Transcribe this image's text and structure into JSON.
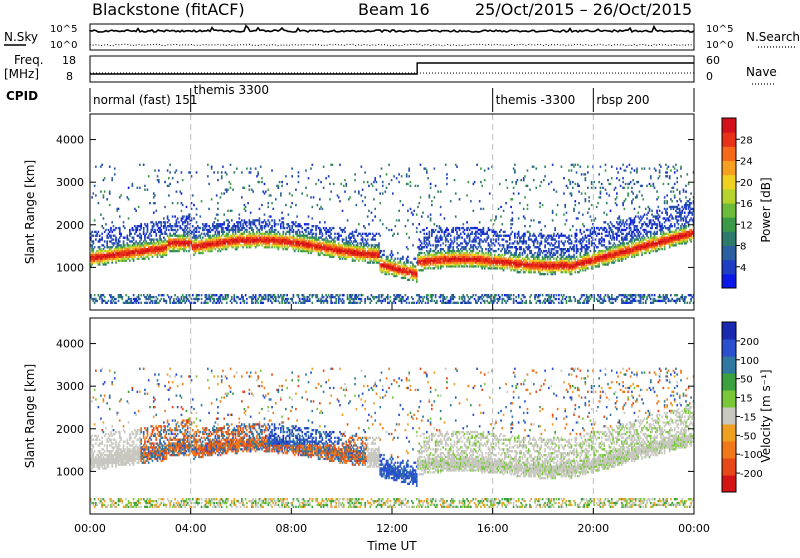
{
  "header": {
    "station": "Blackstone (fitACF)",
    "beam": "Beam 16",
    "date_range": "25/Oct/2015 – 26/Oct/2015"
  },
  "strips": {
    "nsky_label": "N.Sky",
    "nsky_ticks": [
      "10^5",
      "10^0"
    ],
    "nsearch_label": "N.Search",
    "nsearch_ticks": [
      "10^5",
      "10^0"
    ],
    "freq_label": "Freq.",
    "freq_unit": "[MHz]",
    "freq_ticks": [
      "18",
      "8"
    ],
    "nave_label": "Nave",
    "nave_ticks": [
      "60",
      "0"
    ],
    "cpid_label": "CPID",
    "cpid_segments": [
      {
        "label": "normal (fast) 151",
        "start_h": 0
      },
      {
        "label": "themis 3300",
        "start_h": 4
      },
      {
        "label": "themis -3300",
        "start_h": 16
      },
      {
        "label": "rbsp 200",
        "start_h": 20
      }
    ],
    "freq_step_h": 13
  },
  "chart_data": [
    {
      "type": "heatmap",
      "parameter": "Power",
      "xlabel": "",
      "ylabel": "Slant Range [km]",
      "x_range_h": [
        0,
        24
      ],
      "ylim": [
        0,
        4600
      ],
      "yticks": [
        "1000",
        "2000",
        "3000",
        "4000"
      ],
      "colorbar": {
        "label": "Power [dB]",
        "ticks": [
          "4",
          "8",
          "12",
          "16",
          "20",
          "24",
          "28"
        ],
        "range": [
          0,
          32
        ]
      },
      "grid_x_h": [
        4,
        16,
        20
      ]
    },
    {
      "type": "heatmap",
      "parameter": "Velocity",
      "xlabel": "Time UT",
      "ylabel": "Slant Range [km]",
      "x_range_h": [
        0,
        24
      ],
      "xticks": [
        "00:00",
        "04:00",
        "08:00",
        "12:00",
        "16:00",
        "20:00",
        "00:00"
      ],
      "ylim": [
        0,
        4600
      ],
      "yticks": [
        "1000",
        "2000",
        "3000",
        "4000"
      ],
      "colorbar": {
        "label": "Velocity [m s⁻¹]",
        "ticks": [
          "200",
          "100",
          "50",
          "15",
          "-15",
          "-50",
          "-100",
          "-200"
        ]
      },
      "grid_x_h": [
        4,
        16,
        20
      ]
    }
  ],
  "colors": {
    "power_scale": [
      "#0a18e8",
      "#1f3ec4",
      "#2c5fa0",
      "#2e7a6a",
      "#3a9a4a",
      "#6dbb3a",
      "#b6d22c",
      "#f0d020",
      "#f5a020",
      "#f56a1a",
      "#e83218",
      "#d4101a"
    ],
    "velocity_scale": [
      "#1a2ab0",
      "#2a50d0",
      "#2f78a0",
      "#3aa040",
      "#78c838",
      "#c8c8c0",
      "#f0a020",
      "#f07818",
      "#e84818",
      "#d41414"
    ]
  }
}
